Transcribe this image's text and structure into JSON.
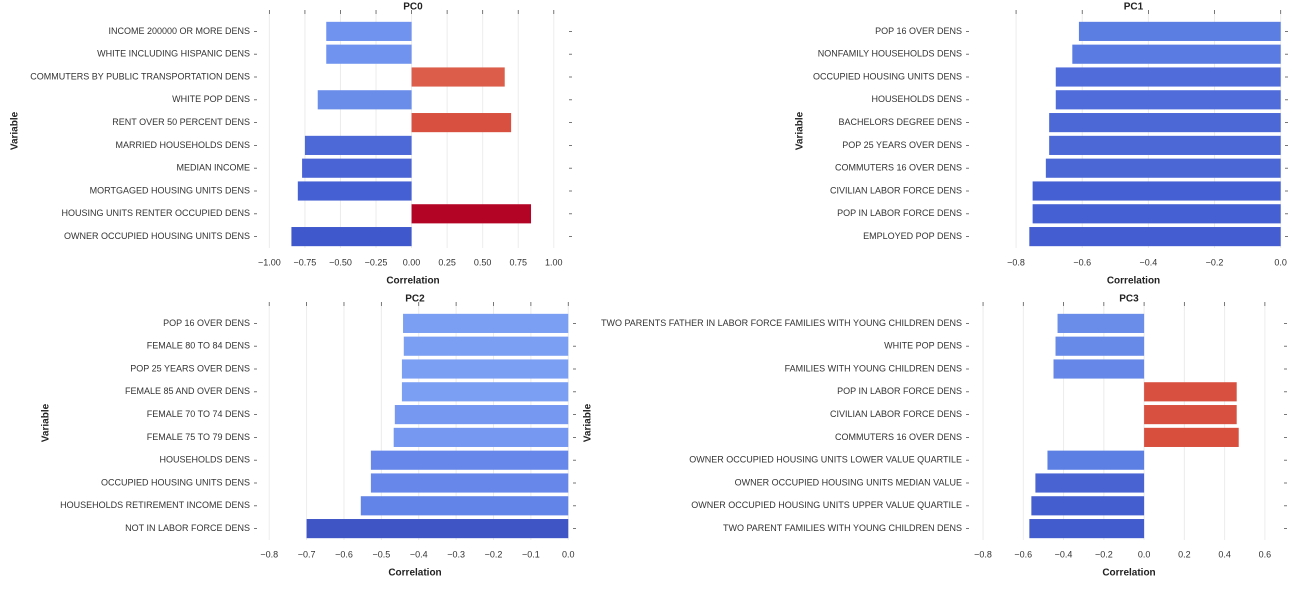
{
  "chart_data": [
    {
      "type": "barh",
      "title": "PC0",
      "xlabel": "Correlation",
      "ylabel": "Variable",
      "categories": [
        "INCOME 200000 OR MORE DENS",
        "WHITE INCLUDING HISPANIC DENS",
        "COMMUTERS BY PUBLIC TRANSPORTATION DENS",
        "WHITE POP DENS",
        "RENT OVER 50 PERCENT DENS",
        "MARRIED HOUSEHOLDS DENS",
        "MEDIAN INCOME",
        "MORTGAGED HOUSING UNITS DENS",
        "HOUSING UNITS RENTER OCCUPIED DENS",
        "OWNER OCCUPIED HOUSING UNITS DENS"
      ],
      "values": [
        -0.6,
        -0.6,
        0.655,
        -0.66,
        0.7,
        -0.75,
        -0.77,
        -0.8,
        0.84,
        -0.845
      ],
      "colors": [
        "#6f93ef",
        "#6f93ef",
        "#dc5d4a",
        "#6a8de9",
        "#d8503f",
        "#4d68d7",
        "#4a64d5",
        "#4560d2",
        "#b40426",
        "#3f59cc"
      ],
      "xlim": [
        -1.08,
        1.1
      ],
      "xticks": [
        {
          "value": -1,
          "label": "−1.00"
        },
        {
          "value": -0.75,
          "label": "−0.75"
        },
        {
          "value": -0.5,
          "label": "−0.50"
        },
        {
          "value": -0.25,
          "label": "−0.25"
        },
        {
          "value": 0,
          "label": "0.00"
        },
        {
          "value": 0.25,
          "label": "0.25"
        },
        {
          "value": 0.5,
          "label": "0.50"
        },
        {
          "value": 0.75,
          "label": "0.75"
        },
        {
          "value": 1,
          "label": "1.00"
        }
      ],
      "grid": true
    },
    {
      "type": "barh",
      "title": "PC1",
      "xlabel": "Correlation",
      "ylabel": "Variable",
      "categories": [
        "POP 16 OVER DENS",
        "NONFAMILY HOUSEHOLDS DENS",
        "OCCUPIED HOUSING UNITS DENS",
        "HOUSEHOLDS DENS",
        "BACHELORS DEGREE DENS",
        "POP 25 YEARS OVER DENS",
        "COMMUTERS 16 OVER DENS",
        "CIVILIAN LABOR FORCE DENS",
        "POP IN LABOR FORCE DENS",
        "EMPLOYED POP DENS"
      ],
      "values": [
        -0.61,
        -0.63,
        -0.68,
        -0.68,
        -0.7,
        -0.7,
        -0.71,
        -0.75,
        -0.75,
        -0.76
      ],
      "colors": [
        "#5b7ee3",
        "#5a7be1",
        "#4f6cda",
        "#4f6cda",
        "#4c68d7",
        "#4c68d7",
        "#4b67d6",
        "#4560d2",
        "#4560d2",
        "#445ed1"
      ],
      "xlim": [
        -0.9,
        0.01
      ],
      "xticks": [
        {
          "value": -0.8,
          "label": "−0.8"
        },
        {
          "value": -0.6,
          "label": "−0.6"
        },
        {
          "value": -0.4,
          "label": "−0.4"
        },
        {
          "value": -0.2,
          "label": "−0.2"
        },
        {
          "value": 0,
          "label": "0.0"
        }
      ],
      "grid": true
    },
    {
      "type": "barh",
      "title": "PC2",
      "xlabel": "Correlation",
      "ylabel": "Variable",
      "categories": [
        "POP 16 OVER DENS",
        "FEMALE 80 TO 84 DENS",
        "POP 25 YEARS OVER DENS",
        "FEMALE 85 AND OVER DENS",
        "FEMALE 70 TO 74 DENS",
        "FEMALE 75 TO 79 DENS",
        "HOUSEHOLDS DENS",
        "OCCUPIED HOUSING UNITS DENS",
        "HOUSEHOLDS RETIREMENT INCOME DENS",
        "NOT IN LABOR FORCE DENS"
      ],
      "values": [
        -0.442,
        -0.44,
        -0.445,
        -0.445,
        -0.464,
        -0.467,
        -0.528,
        -0.528,
        -0.555,
        -0.7
      ],
      "colors": [
        "#7b9ff2",
        "#7b9ff2",
        "#7b9ff2",
        "#7b9ff2",
        "#7698f0",
        "#7698f0",
        "#6788ea",
        "#6788ea",
        "#6283e7",
        "#3f55c6"
      ],
      "xlim": [
        -0.83,
        0.01
      ],
      "xticks": [
        {
          "value": -0.8,
          "label": "−0.8"
        },
        {
          "value": -0.7,
          "label": "−0.7"
        },
        {
          "value": -0.6,
          "label": "−0.6"
        },
        {
          "value": -0.5,
          "label": "−0.5"
        },
        {
          "value": -0.4,
          "label": "−0.4"
        },
        {
          "value": -0.3,
          "label": "−0.3"
        },
        {
          "value": -0.2,
          "label": "−0.2"
        },
        {
          "value": -0.1,
          "label": "−0.1"
        },
        {
          "value": 0,
          "label": "0.0"
        }
      ],
      "grid": true
    },
    {
      "type": "barh",
      "title": "PC3",
      "xlabel": "Correlation",
      "ylabel": "Variable",
      "categories": [
        "TWO PARENTS FATHER IN LABOR FORCE FAMILIES WITH YOUNG CHILDREN DENS",
        "WHITE POP DENS",
        "FAMILIES WITH YOUNG CHILDREN DENS",
        "POP IN LABOR FORCE DENS",
        "CIVILIAN LABOR FORCE DENS",
        "COMMUTERS 16 OVER DENS",
        "OWNER OCCUPIED HOUSING UNITS LOWER VALUE QUARTILE",
        "OWNER OCCUPIED HOUSING UNITS MEDIAN VALUE",
        "OWNER OCCUPIED HOUSING UNITS UPPER VALUE QUARTILE",
        "TWO PARENT FAMILIES WITH YOUNG CHILDREN DENS"
      ],
      "values": [
        -0.43,
        -0.44,
        -0.45,
        0.46,
        0.46,
        0.47,
        -0.48,
        -0.54,
        -0.56,
        -0.57
      ],
      "colors": [
        "#6a8de9",
        "#6789e8",
        "#6687e7",
        "#d8503f",
        "#d8503f",
        "#d84f3e",
        "#5c7fe4",
        "#4a63d3",
        "#445ecf",
        "#425bcd"
      ],
      "xlim": [
        -0.84,
        0.69
      ],
      "xticks": [
        {
          "value": -0.8,
          "label": "−0.8"
        },
        {
          "value": -0.6,
          "label": "−0.6"
        },
        {
          "value": -0.4,
          "label": "−0.4"
        },
        {
          "value": -0.2,
          "label": "−0.2"
        },
        {
          "value": 0,
          "label": "0.0"
        },
        {
          "value": 0.2,
          "label": "0.2"
        },
        {
          "value": 0.4,
          "label": "0.4"
        },
        {
          "value": 0.6,
          "label": "0.6"
        }
      ],
      "grid": true
    }
  ]
}
